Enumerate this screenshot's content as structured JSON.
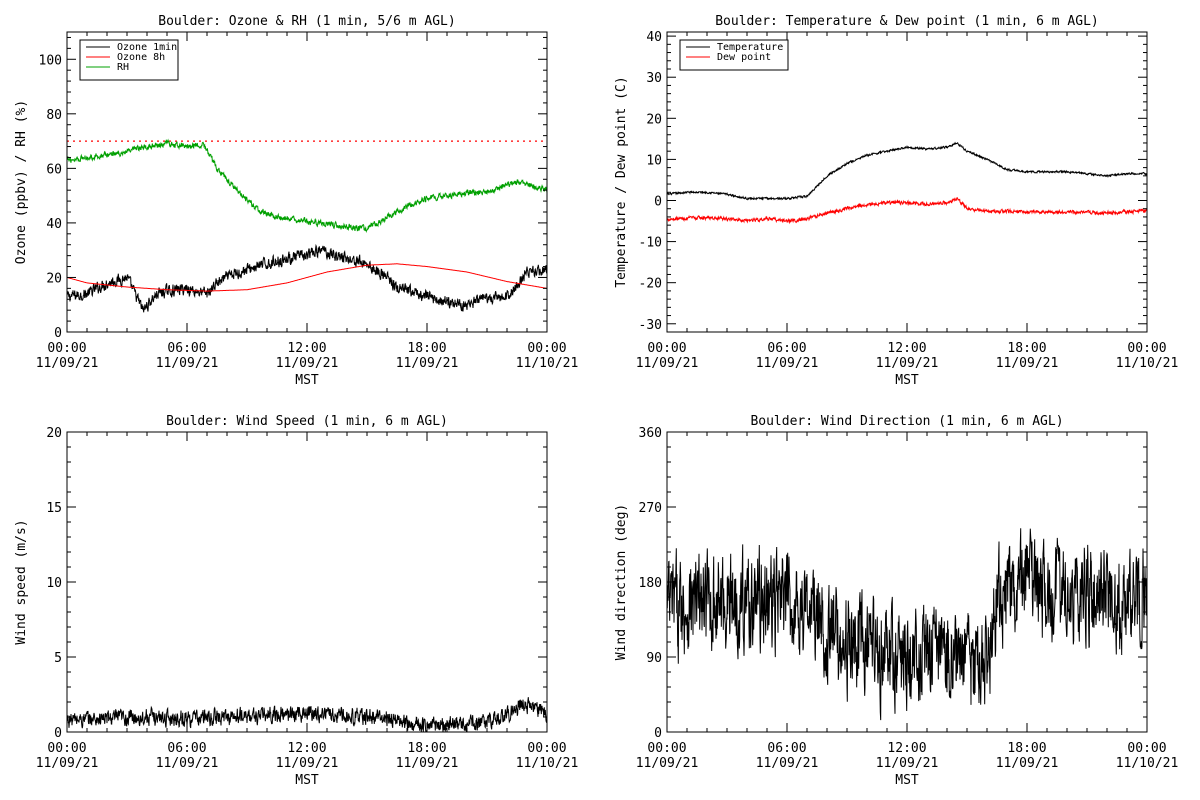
{
  "colors": {
    "black": "#000000",
    "red": "#ff0000",
    "green": "#00a000",
    "dotted_ref": "#ff0000"
  },
  "x_axis": {
    "ticks": [
      {
        "time": "00:00",
        "date": "11/09/21"
      },
      {
        "time": "06:00",
        "date": "11/09/21"
      },
      {
        "time": "12:00",
        "date": "11/09/21"
      },
      {
        "time": "18:00",
        "date": "11/09/21"
      },
      {
        "time": "00:00",
        "date": "11/10/21"
      }
    ],
    "label": "MST"
  },
  "chart_data": [
    {
      "type": "line",
      "title": "Boulder: Ozone & RH (1 min, 5/6 m AGL)",
      "xlabel": "MST",
      "ylabel": "Ozone (ppbv) / RH (%)",
      "xlim": [
        0,
        24
      ],
      "ylim": [
        0,
        110
      ],
      "yticks": [
        0,
        20,
        40,
        60,
        80,
        100
      ],
      "legend": "top-left",
      "reference_line": {
        "y": 70,
        "style": "dotted",
        "color": "#ff0000"
      },
      "series": [
        {
          "name": "Ozone 1min",
          "color": "#000000",
          "noise": 1.8,
          "x": [
            0,
            1,
            2,
            3,
            3.8,
            4.5,
            5,
            6,
            7,
            7.5,
            8,
            9,
            10,
            11,
            12,
            12.75,
            13.5,
            14,
            15,
            16,
            16.5,
            17,
            18,
            19,
            20,
            21,
            22,
            22.5,
            23,
            24
          ],
          "y": [
            13,
            14,
            18,
            20,
            8,
            14,
            15,
            16,
            14,
            18,
            20,
            23,
            25,
            27,
            28,
            30,
            28,
            27,
            25,
            20,
            16,
            15,
            13,
            11,
            10,
            12,
            13,
            17,
            22,
            23
          ]
        },
        {
          "name": "Ozone 8h",
          "color": "#ff0000",
          "noise": 0,
          "x": [
            0,
            1,
            3,
            5,
            7,
            9,
            11,
            13,
            15,
            16.5,
            18,
            20,
            22,
            24
          ],
          "y": [
            20,
            18,
            16.5,
            15.5,
            15,
            15.5,
            18,
            22,
            24.5,
            25,
            24,
            22,
            18.5,
            16
          ]
        },
        {
          "name": "RH",
          "color": "#00a000",
          "noise": 0.9,
          "x": [
            0,
            1,
            2,
            3,
            4,
            5,
            6,
            6.8,
            7.5,
            8.5,
            9.5,
            10.5,
            11.5,
            12.5,
            13.5,
            14.5,
            15,
            16,
            17,
            18,
            19,
            20,
            21,
            22,
            22.5,
            23.5,
            24
          ],
          "y": [
            63,
            64,
            65,
            66,
            68,
            69,
            68,
            69,
            60,
            52,
            45,
            42,
            41,
            40,
            39,
            38,
            38,
            42,
            46,
            49,
            50,
            51,
            51,
            54,
            55,
            53,
            52
          ]
        }
      ]
    },
    {
      "type": "line",
      "title": "Boulder: Temperature & Dew point (1 min, 6 m AGL)",
      "xlabel": "MST",
      "ylabel": "Temperature / Dew point (C)",
      "xlim": [
        0,
        24
      ],
      "ylim": [
        -32,
        41
      ],
      "yticks": [
        -30,
        -20,
        -10,
        0,
        10,
        20,
        30,
        40
      ],
      "legend": "top-left",
      "series": [
        {
          "name": "Temperature",
          "color": "#000000",
          "noise": 0.2,
          "x": [
            0,
            1,
            2,
            3,
            4,
            5,
            6,
            7,
            8,
            9,
            10,
            11,
            12,
            13,
            14,
            14.5,
            15,
            16,
            17,
            18,
            19,
            20,
            21,
            22,
            23,
            24
          ],
          "y": [
            1.5,
            2,
            2,
            1.5,
            0.5,
            0.5,
            0.5,
            1,
            6,
            9,
            11,
            12,
            13,
            12.5,
            13,
            14,
            12,
            10,
            7.5,
            7,
            7,
            7,
            6.5,
            6,
            6.5,
            6.5
          ]
        },
        {
          "name": "Dew point",
          "color": "#ff0000",
          "noise": 0.35,
          "x": [
            0,
            2,
            4,
            5,
            6,
            7,
            8,
            9,
            10,
            11,
            12,
            13,
            14,
            14.5,
            15,
            16,
            18,
            20,
            22,
            24
          ],
          "y": [
            -4.5,
            -4.2,
            -4.8,
            -4.5,
            -5,
            -4.5,
            -3,
            -2,
            -1,
            -0.5,
            -0.5,
            -1,
            -0.5,
            0.5,
            -2,
            -2.5,
            -2.8,
            -2.8,
            -3,
            -2.5
          ]
        }
      ]
    },
    {
      "type": "line",
      "title": "Boulder: Wind Speed (1 min, 6 m AGL)",
      "xlabel": "MST",
      "ylabel": "Wind speed (m/s)",
      "xlim": [
        0,
        24
      ],
      "ylim": [
        0,
        20
      ],
      "yticks": [
        0,
        5,
        10,
        15,
        20
      ],
      "series": [
        {
          "color": "#000000",
          "noise": 0.45,
          "x": [
            0,
            2,
            4,
            6,
            8,
            10,
            12,
            14,
            16,
            17,
            18,
            20,
            21,
            22,
            23,
            24
          ],
          "y": [
            0.8,
            0.9,
            1.0,
            0.9,
            1.0,
            1.1,
            1.3,
            1.1,
            0.9,
            0.6,
            0.5,
            0.5,
            0.7,
            1.2,
            1.8,
            1.2
          ]
        }
      ]
    },
    {
      "type": "line",
      "title": "Boulder: Wind Direction (1 min, 6 m AGL)",
      "xlabel": "MST",
      "ylabel": "Wind direction (deg)",
      "xlim": [
        0,
        24
      ],
      "ylim": [
        0,
        360
      ],
      "yticks": [
        0,
        90,
        180,
        270,
        360
      ],
      "series": [
        {
          "color": "#000000",
          "noise": 48,
          "x": [
            0,
            2,
            4,
            6,
            7,
            8,
            9,
            10,
            11,
            12,
            13,
            14,
            15,
            16,
            16.5,
            17,
            18,
            19,
            20,
            21,
            22,
            23,
            24
          ],
          "y": [
            150,
            155,
            160,
            155,
            150,
            120,
            105,
            100,
            90,
            85,
            95,
            95,
            85,
            85,
            160,
            170,
            175,
            165,
            170,
            170,
            160,
            150,
            170
          ]
        }
      ]
    }
  ]
}
